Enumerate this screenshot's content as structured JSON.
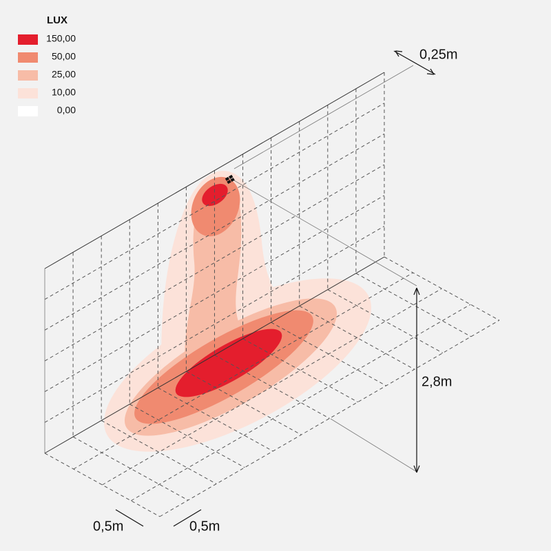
{
  "legend": {
    "title": "LUX",
    "items": [
      {
        "label": "150,00",
        "color": "#e41e2d"
      },
      {
        "label": "50,00",
        "color": "#f08a70"
      },
      {
        "label": "25,00",
        "color": "#f7bca7"
      },
      {
        "label": "10,00",
        "color": "#fce2d9"
      },
      {
        "label": "0,00",
        "color": "#ffffff"
      }
    ]
  },
  "dimensions": {
    "offset": "0,25m",
    "height": "2,8m",
    "grid_x": "0,5m",
    "grid_y": "0,5m"
  }
}
